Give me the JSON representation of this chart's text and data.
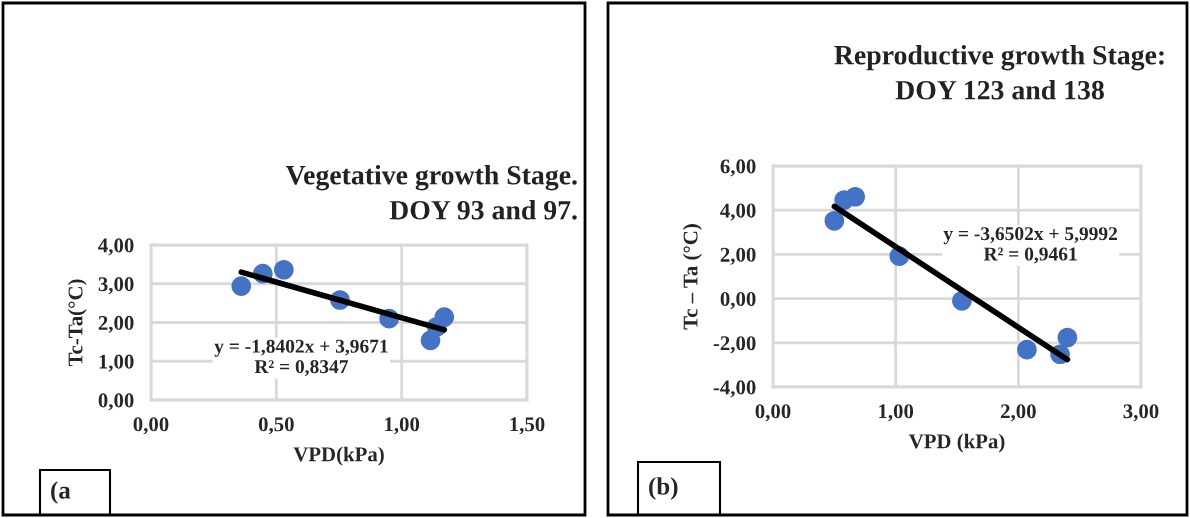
{
  "chart_data": [
    {
      "type": "scatter",
      "title": "Vegetative growth Stage.\nDOY 93 and 97.",
      "xlabel": "VPD(kPa)",
      "ylabel": "Tc-Ta(°C)",
      "series": [
        {
          "color": "#4472c4",
          "marker": "circle",
          "x": [
            0.36,
            0.446,
            0.53,
            0.754,
            0.95,
            1.17,
            1.14,
            1.115
          ],
          "values": [
            2.94,
            3.26,
            3.36,
            2.58,
            2.1,
            2.14,
            1.89,
            1.54
          ]
        },
        {
          "type": "line",
          "color": "#000000",
          "x": [
            0.36,
            1.17
          ],
          "values": [
            3.3,
            1.81
          ]
        }
      ],
      "xlim": [
        0,
        1.5
      ],
      "xticks": [
        {
          "value": 0,
          "label": "0,00"
        },
        {
          "value": 0.5,
          "label": "0,50"
        },
        {
          "value": 1,
          "label": "1,00"
        },
        {
          "value": 1.5,
          "label": "1,50"
        }
      ],
      "ylim": [
        0,
        4
      ],
      "yticks": [
        {
          "value": 0,
          "label": "0,00"
        },
        {
          "value": 1,
          "label": "1,00"
        },
        {
          "value": 2,
          "label": "2,00"
        },
        {
          "value": 3,
          "label": "3,00"
        },
        {
          "value": 4,
          "label": "4,00"
        }
      ],
      "grid": true,
      "annotations": [
        "y = -1,8402x + 3,9671\nR² = 0,8347",
        "(a"
      ]
    },
    {
      "type": "scatter",
      "title": "Reproductive growth Stage:\nDOY 123 and 138",
      "xlabel": "VPD (kPa)",
      "ylabel": "Tc – Ta (°C)",
      "series": [
        {
          "color": "#4472c4",
          "marker": "circle",
          "x": [
            0.5,
            0.58,
            0.67,
            1.03,
            1.54,
            2.07,
            2.34,
            2.4
          ],
          "values": [
            3.52,
            4.46,
            4.61,
            1.92,
            -0.1,
            -2.31,
            -2.52,
            -1.76
          ]
        },
        {
          "type": "line",
          "color": "#000000",
          "x": [
            0.5,
            2.4
          ],
          "values": [
            4.17,
            -2.76
          ]
        }
      ],
      "xlim": [
        0,
        3
      ],
      "xticks": [
        {
          "value": 0,
          "label": "0,00"
        },
        {
          "value": 1,
          "label": "1,00"
        },
        {
          "value": 2,
          "label": "2,00"
        },
        {
          "value": 3,
          "label": "3,00"
        }
      ],
      "ylim": [
        -4,
        6
      ],
      "yticks": [
        {
          "value": -4,
          "label": "-4,00"
        },
        {
          "value": -2,
          "label": "-2,00"
        },
        {
          "value": 0,
          "label": "0,00"
        },
        {
          "value": 2,
          "label": "2,00"
        },
        {
          "value": 4,
          "label": "4,00"
        },
        {
          "value": 6,
          "label": "6,00"
        }
      ],
      "grid": true,
      "annotations": [
        "y = -3,6502x + 5,9992\nR² = 0,9461",
        "(b)"
      ]
    }
  ]
}
